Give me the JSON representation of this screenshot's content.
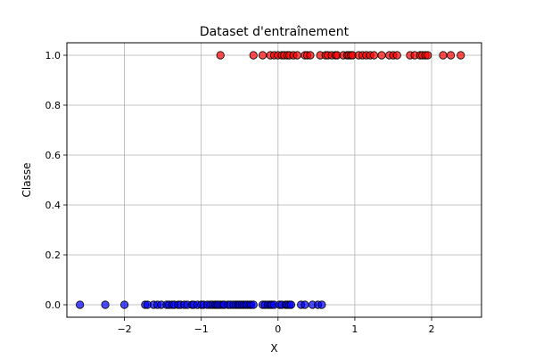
{
  "chart_data": {
    "type": "scatter",
    "title": "Dataset d'entraînement",
    "xlabel": "X",
    "ylabel": "Classe",
    "xlim": [
      -2.75,
      2.65
    ],
    "ylim": [
      -0.05,
      1.05
    ],
    "x_ticks": [
      -2,
      -1,
      0,
      1,
      2
    ],
    "x_tick_labels": [
      "−2",
      "−1",
      "0",
      "1",
      "2"
    ],
    "y_ticks": [
      0.0,
      0.2,
      0.4,
      0.6,
      0.8,
      1.0
    ],
    "y_tick_labels": [
      "0.0",
      "0.2",
      "0.4",
      "0.6",
      "0.8",
      "1.0"
    ],
    "grid": true,
    "legend": "none",
    "colors": {
      "class_0": "#0000ff",
      "class_1": "#ff0000",
      "edge": "#000000",
      "grid": "#b0b0b0"
    },
    "series": [
      {
        "values_y": 0,
        "x": [
          -2.58,
          -2.25,
          -2.0,
          -1.73,
          -1.7,
          -1.62,
          -1.57,
          -1.52,
          -1.45,
          -1.42,
          -1.38,
          -1.35,
          -1.3,
          -1.27,
          -1.22,
          -1.18,
          -1.12,
          -1.1,
          -1.05,
          -1.0,
          -0.97,
          -0.92,
          -0.88,
          -0.85,
          -0.82,
          -0.8,
          -0.78,
          -0.75,
          -0.72,
          -0.7,
          -0.65,
          -0.62,
          -0.58,
          -0.55,
          -0.52,
          -0.5,
          -0.47,
          -0.45,
          -0.42,
          -0.4,
          -0.37,
          -0.35,
          -0.32,
          -0.2,
          -0.17,
          -0.13,
          -0.1,
          -0.08,
          -0.05,
          0.02,
          0.05,
          0.1,
          0.12,
          0.15,
          0.17,
          0.3,
          0.35,
          0.45,
          0.52,
          0.57
        ]
      },
      {
        "values_y": 1,
        "x": [
          -0.75,
          -0.32,
          -0.2,
          -0.1,
          -0.05,
          0.0,
          0.05,
          0.08,
          0.12,
          0.15,
          0.2,
          0.25,
          0.35,
          0.38,
          0.42,
          0.55,
          0.62,
          0.65,
          0.7,
          0.75,
          0.77,
          0.85,
          0.9,
          0.92,
          0.95,
          0.97,
          1.05,
          1.1,
          1.15,
          1.2,
          1.25,
          1.35,
          1.45,
          1.5,
          1.55,
          1.72,
          1.78,
          1.85,
          1.88,
          1.92,
          1.95,
          2.15,
          2.25,
          2.38
        ]
      }
    ]
  }
}
